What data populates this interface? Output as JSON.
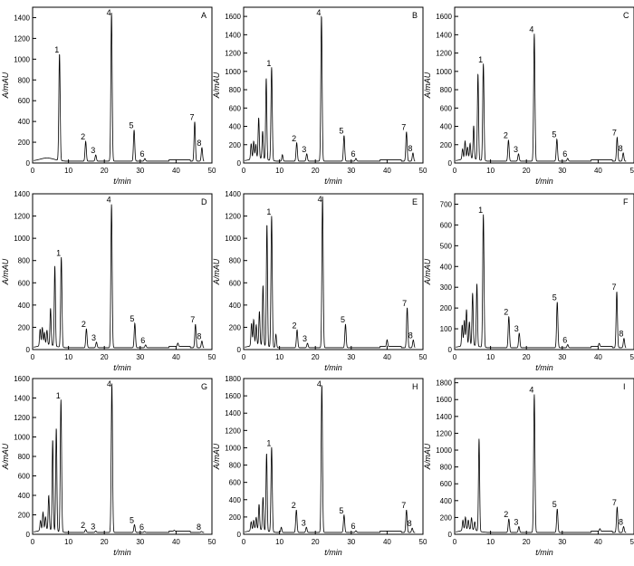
{
  "figure": {
    "xlabel": "t/min",
    "ylabel": "A/mAU"
  },
  "chart_data": [
    {
      "type": "line",
      "panel": "A",
      "xlim": [
        0,
        50
      ],
      "ylim": [
        0,
        1500
      ],
      "yticks": [
        0,
        200,
        400,
        600,
        800,
        1000,
        1200,
        1400
      ],
      "xticks": [
        0,
        10,
        20,
        30,
        40,
        50
      ],
      "peaks": [
        {
          "label": "1",
          "x": 7.5,
          "y": 1030
        },
        {
          "label": "2",
          "x": 14.8,
          "y": 190
        },
        {
          "label": "3",
          "x": 17.6,
          "y": 60
        },
        {
          "label": "4",
          "x": 22.0,
          "y": 1430
        },
        {
          "label": "5",
          "x": 28.3,
          "y": 300
        },
        {
          "label": "6",
          "x": 31.3,
          "y": 25
        },
        {
          "label": "7",
          "x": 45.2,
          "y": 380
        },
        {
          "label": "8",
          "x": 47.2,
          "y": 130
        }
      ],
      "extra_peaks": []
    },
    {
      "type": "line",
      "panel": "B",
      "xlim": [
        0,
        50
      ],
      "ylim": [
        0,
        1700
      ],
      "yticks": [
        0,
        200,
        400,
        600,
        800,
        1000,
        1200,
        1400,
        1600
      ],
      "xticks": [
        0,
        10,
        20,
        30,
        40,
        50
      ],
      "peaks": [
        {
          "label": "1",
          "x": 7.8,
          "y": 1020
        },
        {
          "label": "2",
          "x": 14.8,
          "y": 200
        },
        {
          "label": "3",
          "x": 17.6,
          "y": 80
        },
        {
          "label": "4",
          "x": 21.7,
          "y": 1590
        },
        {
          "label": "5",
          "x": 28.0,
          "y": 280
        },
        {
          "label": "6",
          "x": 31.3,
          "y": 30
        },
        {
          "label": "7",
          "x": 45.4,
          "y": 320
        },
        {
          "label": "8",
          "x": 47.2,
          "y": 90
        }
      ],
      "extra_peaks": [
        {
          "x": 2.1,
          "y": 170
        },
        {
          "x": 2.8,
          "y": 190
        },
        {
          "x": 3.4,
          "y": 150
        },
        {
          "x": 4.2,
          "y": 440
        },
        {
          "x": 5.3,
          "y": 300
        },
        {
          "x": 6.3,
          "y": 890
        },
        {
          "x": 10.8,
          "y": 70
        }
      ]
    },
    {
      "type": "line",
      "panel": "C",
      "xlim": [
        0,
        50
      ],
      "ylim": [
        0,
        1700
      ],
      "yticks": [
        0,
        200,
        400,
        600,
        800,
        1000,
        1200,
        1400,
        1600
      ],
      "xticks": [
        0,
        10,
        20,
        30,
        40,
        50
      ],
      "peaks": [
        {
          "label": "1",
          "x": 8.0,
          "y": 1060
        },
        {
          "label": "2",
          "x": 15.0,
          "y": 230
        },
        {
          "label": "3",
          "x": 17.8,
          "y": 80
        },
        {
          "label": "4",
          "x": 22.2,
          "y": 1390
        },
        {
          "label": "5",
          "x": 28.5,
          "y": 240
        },
        {
          "label": "6",
          "x": 31.5,
          "y": 30
        },
        {
          "label": "7",
          "x": 45.3,
          "y": 260
        },
        {
          "label": "8",
          "x": 47.0,
          "y": 90
        }
      ],
      "extra_peaks": [
        {
          "x": 2.2,
          "y": 110
        },
        {
          "x": 2.9,
          "y": 190
        },
        {
          "x": 3.6,
          "y": 120
        },
        {
          "x": 4.3,
          "y": 160
        },
        {
          "x": 5.3,
          "y": 360
        },
        {
          "x": 6.5,
          "y": 940
        }
      ]
    },
    {
      "type": "line",
      "panel": "D",
      "xlim": [
        0,
        50
      ],
      "ylim": [
        0,
        1400
      ],
      "yticks": [
        0,
        200,
        400,
        600,
        800,
        1000,
        1200,
        1400
      ],
      "xticks": [
        0,
        10,
        20,
        30,
        40,
        50
      ],
      "peaks": [
        {
          "label": "1",
          "x": 8.0,
          "y": 810
        },
        {
          "label": "2",
          "x": 15.0,
          "y": 170
        },
        {
          "label": "3",
          "x": 17.8,
          "y": 50
        },
        {
          "label": "4",
          "x": 22.0,
          "y": 1290
        },
        {
          "label": "5",
          "x": 28.5,
          "y": 220
        },
        {
          "label": "6",
          "x": 31.5,
          "y": 25
        },
        {
          "label": "7",
          "x": 45.4,
          "y": 210
        },
        {
          "label": "8",
          "x": 47.2,
          "y": 60
        }
      ],
      "extra_peaks": [
        {
          "x": 2.1,
          "y": 150
        },
        {
          "x": 2.7,
          "y": 160
        },
        {
          "x": 3.3,
          "y": 110
        },
        {
          "x": 4.0,
          "y": 130
        },
        {
          "x": 5.0,
          "y": 330
        },
        {
          "x": 6.2,
          "y": 720
        },
        {
          "x": 40.5,
          "y": 30
        }
      ]
    },
    {
      "type": "line",
      "panel": "E",
      "xlim": [
        0,
        50
      ],
      "ylim": [
        0,
        1400
      ],
      "yticks": [
        0,
        200,
        400,
        600,
        800,
        1000,
        1200,
        1400
      ],
      "xticks": [
        0,
        10,
        20,
        30,
        40,
        50
      ],
      "peaks": [
        {
          "label": "1",
          "x": 7.8,
          "y": 1180
        },
        {
          "label": "2",
          "x": 14.9,
          "y": 160
        },
        {
          "label": "3",
          "x": 17.8,
          "y": 40
        },
        {
          "label": "4",
          "x": 22.0,
          "y": 1360
        },
        {
          "label": "5",
          "x": 28.4,
          "y": 210
        },
        {
          "label": "7",
          "x": 45.6,
          "y": 360
        },
        {
          "label": "8",
          "x": 47.3,
          "y": 70
        }
      ],
      "extra_peaks": [
        {
          "x": 2.2,
          "y": 200
        },
        {
          "x": 2.8,
          "y": 230
        },
        {
          "x": 3.5,
          "y": 180
        },
        {
          "x": 4.4,
          "y": 300
        },
        {
          "x": 5.4,
          "y": 540
        },
        {
          "x": 6.5,
          "y": 1100
        },
        {
          "x": 9.0,
          "y": 120
        },
        {
          "x": 40.0,
          "y": 60
        }
      ]
    },
    {
      "type": "line",
      "panel": "F",
      "xlim": [
        0,
        50
      ],
      "ylim": [
        0,
        750
      ],
      "yticks": [
        0,
        100,
        200,
        300,
        400,
        500,
        600,
        700
      ],
      "xticks": [
        0,
        10,
        20,
        30,
        40,
        50
      ],
      "peaks": [
        {
          "label": "1",
          "x": 8.0,
          "y": 640
        },
        {
          "label": "2",
          "x": 15.1,
          "y": 150
        },
        {
          "label": "3",
          "x": 18.0,
          "y": 70
        },
        {
          "label": "5",
          "x": 28.6,
          "y": 220
        },
        {
          "label": "6",
          "x": 31.5,
          "y": 15
        },
        {
          "label": "7",
          "x": 45.2,
          "y": 270
        },
        {
          "label": "8",
          "x": 47.2,
          "y": 45
        }
      ],
      "extra_peaks": [
        {
          "x": 2.1,
          "y": 100
        },
        {
          "x": 2.7,
          "y": 120
        },
        {
          "x": 3.3,
          "y": 170
        },
        {
          "x": 4.1,
          "y": 110
        },
        {
          "x": 5.0,
          "y": 250
        },
        {
          "x": 6.2,
          "y": 300
        },
        {
          "x": 40.3,
          "y": 15
        }
      ]
    },
    {
      "type": "line",
      "panel": "G",
      "xlim": [
        0,
        50
      ],
      "ylim": [
        0,
        1600
      ],
      "yticks": [
        0,
        200,
        400,
        600,
        800,
        1000,
        1200,
        1400,
        1600
      ],
      "xticks": [
        0,
        10,
        20,
        30,
        40,
        50
      ],
      "peaks": [
        {
          "label": "1",
          "x": 7.9,
          "y": 1360
        },
        {
          "label": "2",
          "x": 14.8,
          "y": 30
        },
        {
          "label": "3",
          "x": 17.6,
          "y": 15
        },
        {
          "label": "4",
          "x": 22.1,
          "y": 1530
        },
        {
          "label": "5",
          "x": 28.4,
          "y": 80
        },
        {
          "label": "6",
          "x": 31.2,
          "y": 10
        },
        {
          "label": "8",
          "x": 47.1,
          "y": 10
        }
      ],
      "extra_peaks": [
        {
          "x": 2.2,
          "y": 100
        },
        {
          "x": 2.9,
          "y": 180
        },
        {
          "x": 3.6,
          "y": 130
        },
        {
          "x": 4.5,
          "y": 350
        },
        {
          "x": 5.6,
          "y": 930
        },
        {
          "x": 6.6,
          "y": 1060
        },
        {
          "x": 39.5,
          "y": 10
        }
      ]
    },
    {
      "type": "line",
      "panel": "H",
      "xlim": [
        0,
        50
      ],
      "ylim": [
        0,
        1800
      ],
      "yticks": [
        0,
        200,
        400,
        600,
        800,
        1000,
        1200,
        1400,
        1600,
        1800
      ],
      "xticks": [
        0,
        10,
        20,
        30,
        40,
        50
      ],
      "peaks": [
        {
          "label": "1",
          "x": 7.8,
          "y": 980
        },
        {
          "label": "2",
          "x": 14.7,
          "y": 260
        },
        {
          "label": "3",
          "x": 17.5,
          "y": 60
        },
        {
          "label": "4",
          "x": 21.8,
          "y": 1710
        },
        {
          "label": "5",
          "x": 28.0,
          "y": 200
        },
        {
          "label": "6",
          "x": 31.3,
          "y": 20
        },
        {
          "label": "7",
          "x": 45.4,
          "y": 260
        },
        {
          "label": "8",
          "x": 47.0,
          "y": 50
        }
      ],
      "extra_peaks": [
        {
          "x": 2.1,
          "y": 100
        },
        {
          "x": 2.8,
          "y": 110
        },
        {
          "x": 3.5,
          "y": 140
        },
        {
          "x": 4.3,
          "y": 290
        },
        {
          "x": 5.4,
          "y": 380
        },
        {
          "x": 6.4,
          "y": 900
        },
        {
          "x": 10.5,
          "y": 60
        }
      ]
    },
    {
      "type": "line",
      "panel": "I",
      "xlim": [
        0,
        50
      ],
      "ylim": [
        0,
        1850
      ],
      "yticks": [
        0,
        200,
        400,
        600,
        800,
        1000,
        1200,
        1400,
        1600,
        1800
      ],
      "xticks": [
        0,
        10,
        20,
        30,
        40,
        50
      ],
      "peaks": [
        {
          "label": "2",
          "x": 15.1,
          "y": 160
        },
        {
          "label": "3",
          "x": 17.9,
          "y": 70
        },
        {
          "label": "4",
          "x": 22.2,
          "y": 1640
        },
        {
          "label": "5",
          "x": 28.6,
          "y": 280
        },
        {
          "label": "7",
          "x": 45.3,
          "y": 300
        },
        {
          "label": "8",
          "x": 47.1,
          "y": 70
        }
      ],
      "extra_peaks": [
        {
          "x": 2.3,
          "y": 120
        },
        {
          "x": 3.0,
          "y": 150
        },
        {
          "x": 3.8,
          "y": 110
        },
        {
          "x": 4.7,
          "y": 140
        },
        {
          "x": 5.6,
          "y": 100
        },
        {
          "x": 6.8,
          "y": 1100
        },
        {
          "x": 40.5,
          "y": 30
        }
      ]
    }
  ]
}
